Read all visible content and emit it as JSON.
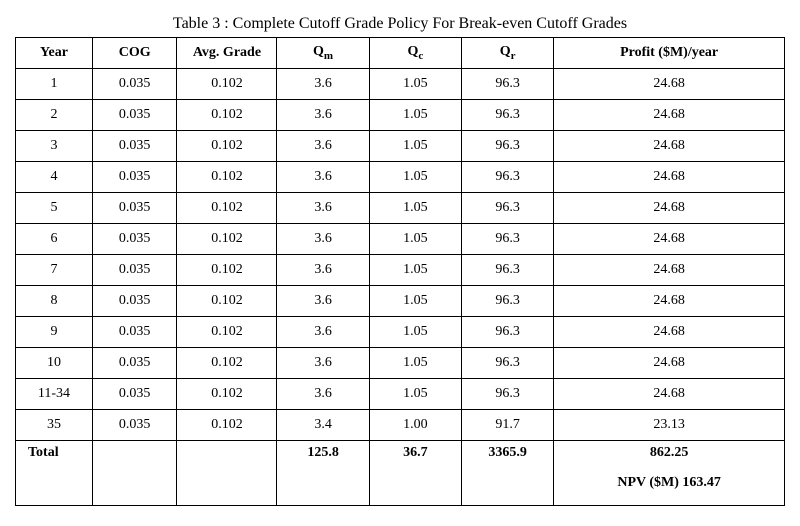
{
  "title": "Table 3 : Complete Cutoff Grade Policy For Break-even Cutoff Grades",
  "columns": {
    "year": "Year",
    "cog": "COG",
    "avg_grade": "Avg. Grade",
    "qm_label": "Q",
    "qm_sub": "m",
    "qc_label": "Q",
    "qc_sub": "c",
    "qr_label": "Q",
    "qr_sub": "r",
    "profit": "Profit ($M)/year"
  },
  "rows": [
    {
      "year": "1",
      "cog": "0.035",
      "avg": "0.102",
      "qm": "3.6",
      "qc": "1.05",
      "qr": "96.3",
      "profit": "24.68"
    },
    {
      "year": "2",
      "cog": "0.035",
      "avg": "0.102",
      "qm": "3.6",
      "qc": "1.05",
      "qr": "96.3",
      "profit": "24.68"
    },
    {
      "year": "3",
      "cog": "0.035",
      "avg": "0.102",
      "qm": "3.6",
      "qc": "1.05",
      "qr": "96.3",
      "profit": "24.68"
    },
    {
      "year": "4",
      "cog": "0.035",
      "avg": "0.102",
      "qm": "3.6",
      "qc": "1.05",
      "qr": "96.3",
      "profit": "24.68"
    },
    {
      "year": "5",
      "cog": "0.035",
      "avg": "0.102",
      "qm": "3.6",
      "qc": "1.05",
      "qr": "96.3",
      "profit": "24.68"
    },
    {
      "year": "6",
      "cog": "0.035",
      "avg": "0.102",
      "qm": "3.6",
      "qc": "1.05",
      "qr": "96.3",
      "profit": "24.68"
    },
    {
      "year": "7",
      "cog": "0.035",
      "avg": "0.102",
      "qm": "3.6",
      "qc": "1.05",
      "qr": "96.3",
      "profit": "24.68"
    },
    {
      "year": "8",
      "cog": "0.035",
      "avg": "0.102",
      "qm": "3.6",
      "qc": "1.05",
      "qr": "96.3",
      "profit": "24.68"
    },
    {
      "year": "9",
      "cog": "0.035",
      "avg": "0.102",
      "qm": "3.6",
      "qc": "1.05",
      "qr": "96.3",
      "profit": "24.68"
    },
    {
      "year": "10",
      "cog": "0.035",
      "avg": "0.102",
      "qm": "3.6",
      "qc": "1.05",
      "qr": "96.3",
      "profit": "24.68"
    },
    {
      "year": "11-34",
      "cog": "0.035",
      "avg": "0.102",
      "qm": "3.6",
      "qc": "1.05",
      "qr": "96.3",
      "profit": "24.68"
    },
    {
      "year": "35",
      "cog": "0.035",
      "avg": "0.102",
      "qm": "3.4",
      "qc": "1.00",
      "qr": "91.7",
      "profit": "23.13"
    }
  ],
  "total": {
    "label": "Total",
    "qm": "125.8",
    "qc": "36.7",
    "qr": "3365.9",
    "profit": "862.25",
    "npv": "NPV ($M) 163.47"
  },
  "style": {
    "border_color": "#000000",
    "background_color": "#ffffff",
    "font_family": "Times New Roman",
    "title_fontsize": 16,
    "cell_fontsize": 14,
    "border_width": 1.5
  }
}
